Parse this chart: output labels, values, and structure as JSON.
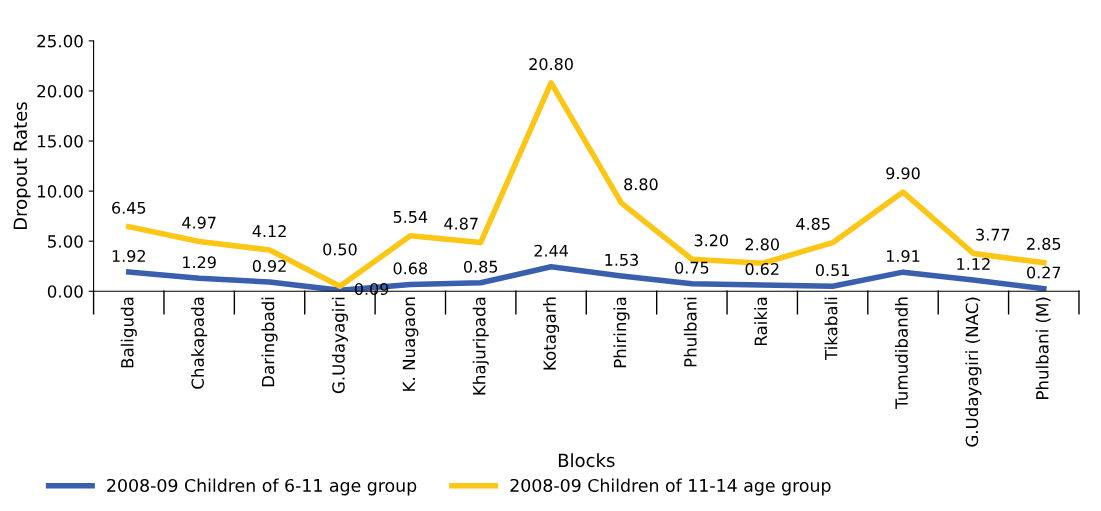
{
  "chart_data": {
    "type": "line",
    "xlabel": "Blocks",
    "ylabel": "Dropout Rates",
    "categories": [
      "Baliguda",
      "Chakapada",
      "Daringbadi",
      "G.Udayagiri",
      "K. Nuagaon",
      "Khajuripada",
      "Kotagarh",
      "Phiringia",
      "Phulbani",
      "Raikia",
      "Tikabali",
      "Tumudibandh",
      "G.Udayagiri (NAC)",
      "Phulbani (M)"
    ],
    "series": [
      {
        "name": "2008-09 Children of 6-11 age group",
        "color": "#3a5fad",
        "values": [
          1.92,
          1.29,
          0.92,
          0.09,
          0.68,
          0.85,
          2.44,
          1.53,
          0.75,
          0.62,
          0.51,
          1.91,
          1.12,
          0.27
        ],
        "value_labels": [
          "1.92",
          "1.29",
          "0.92",
          "0.09",
          "0.68",
          "0.85",
          "2.44",
          "1.53",
          "0.75",
          "0.62",
          "0.51",
          "1.91",
          "1.12",
          "0.27"
        ]
      },
      {
        "name": "2008-09 Children of 11-14 age group",
        "color": "#fcc617",
        "values": [
          6.45,
          4.97,
          4.12,
          0.5,
          5.54,
          4.87,
          20.8,
          8.8,
          3.2,
          2.8,
          4.85,
          9.9,
          3.77,
          2.85
        ],
        "value_labels": [
          "6.45",
          "4.97",
          "4.12",
          "0.50",
          "5.54",
          "4.87",
          "20.80",
          "8.80",
          "3.20",
          "2.80",
          "4.85",
          "9.90",
          "3.77",
          "2.85"
        ]
      }
    ],
    "ylim": [
      0,
      25
    ],
    "yticks": [
      {
        "value": 0,
        "label": "0.00"
      },
      {
        "value": 5,
        "label": "5.00"
      },
      {
        "value": 10,
        "label": "10.00"
      },
      {
        "value": 15,
        "label": "15.00"
      },
      {
        "value": 20,
        "label": "20.00"
      },
      {
        "value": 25,
        "label": "25.00"
      }
    ],
    "grid": false,
    "legend": "bottom left",
    "marker": "none",
    "line_style": "solid"
  }
}
